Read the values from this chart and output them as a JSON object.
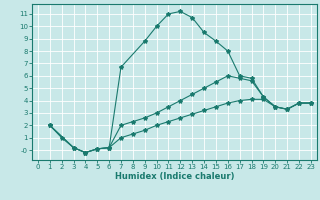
{
  "xlabel": "Humidex (Indice chaleur)",
  "bg_color": "#c8e8e8",
  "grid_color": "#ffffff",
  "line_color": "#1a7a6e",
  "xlim": [
    -0.5,
    23.5
  ],
  "ylim": [
    -0.8,
    11.8
  ],
  "xticks": [
    0,
    1,
    2,
    3,
    4,
    5,
    6,
    7,
    8,
    9,
    10,
    11,
    12,
    13,
    14,
    15,
    16,
    17,
    18,
    19,
    20,
    21,
    22,
    23
  ],
  "yticks": [
    0,
    1,
    2,
    3,
    4,
    5,
    6,
    7,
    8,
    9,
    10,
    11
  ],
  "ytick_labels": [
    "-0",
    "1",
    "2",
    "3",
    "4",
    "5",
    "6",
    "7",
    "8",
    "9",
    "10",
    "11"
  ],
  "series": [
    {
      "x": [
        1,
        2,
        3,
        4,
        5,
        6,
        7,
        9,
        10,
        11,
        12,
        13,
        14,
        15,
        16,
        17,
        18,
        19,
        20,
        21,
        22,
        23
      ],
      "y": [
        2,
        1,
        0.2,
        -0.2,
        0.1,
        0.2,
        6.7,
        8.8,
        10,
        11,
        11.2,
        10.7,
        9.5,
        8.8,
        8,
        6,
        5.8,
        4.3,
        3.5,
        3.3,
        3.8,
        3.8
      ]
    },
    {
      "x": [
        1,
        3,
        4,
        5,
        6,
        7,
        8,
        9,
        10,
        11,
        12,
        13,
        14,
        15,
        16,
        17,
        18,
        19,
        20,
        21,
        22,
        23
      ],
      "y": [
        2,
        0.2,
        -0.2,
        0.1,
        0.2,
        2.0,
        2.3,
        2.6,
        3.0,
        3.5,
        4.0,
        4.5,
        5.0,
        5.5,
        6.0,
        5.8,
        5.6,
        4.3,
        3.5,
        3.3,
        3.8,
        3.8
      ]
    },
    {
      "x": [
        1,
        3,
        4,
        5,
        6,
        7,
        8,
        9,
        10,
        11,
        12,
        13,
        14,
        15,
        16,
        17,
        18,
        19,
        20,
        21,
        22,
        23
      ],
      "y": [
        2,
        0.2,
        -0.2,
        0.1,
        0.2,
        1.0,
        1.3,
        1.6,
        2.0,
        2.3,
        2.6,
        2.9,
        3.2,
        3.5,
        3.8,
        4.0,
        4.1,
        4.1,
        3.5,
        3.3,
        3.8,
        3.8
      ]
    }
  ]
}
